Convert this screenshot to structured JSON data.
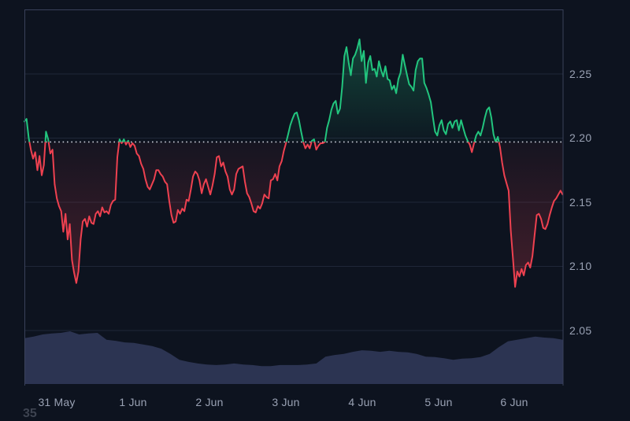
{
  "chart_data": {
    "type": "line",
    "title": "",
    "x_labels": [
      "31 May",
      "1 Jun",
      "2 Jun",
      "3 Jun",
      "4 Jun",
      "5 Jun",
      "6 Jun"
    ],
    "y_tick_labels": [
      "2.25",
      "2.20",
      "2.15",
      "2.10",
      "2.05"
    ],
    "y_ticks": [
      2.25,
      2.2,
      2.15,
      2.1,
      2.05
    ],
    "ylim_visible": [
      2.01,
      2.3
    ],
    "baseline": 2.197,
    "grid": "horizontal-only",
    "legend": "none",
    "corner_text": "35",
    "colors": {
      "up": "#22c57e",
      "down": "#ee4150",
      "volume": "#2c3452",
      "background": "#0d131f",
      "grid": "#1f2738",
      "border": "#39415a",
      "baseline_dots": "#ccd1db",
      "axis_text": "#99a1b3",
      "corner_text": "#3d4350"
    },
    "prices": [
      2.213,
      2.215,
      2.2,
      2.191,
      2.184,
      2.189,
      2.175,
      2.186,
      2.171,
      2.179,
      2.205,
      2.199,
      2.188,
      2.191,
      2.164,
      2.153,
      2.147,
      2.143,
      2.127,
      2.141,
      2.121,
      2.133,
      2.105,
      2.095,
      2.087,
      2.096,
      2.121,
      2.135,
      2.137,
      2.131,
      2.139,
      2.134,
      2.133,
      2.141,
      2.143,
      2.139,
      2.146,
      2.142,
      2.143,
      2.141,
      2.148,
      2.151,
      2.152,
      2.185,
      2.199,
      2.196,
      2.199,
      2.195,
      2.198,
      2.193,
      2.196,
      2.194,
      2.188,
      2.186,
      2.18,
      2.176,
      2.168,
      2.162,
      2.16,
      2.164,
      2.168,
      2.175,
      2.175,
      2.172,
      2.17,
      2.166,
      2.164,
      2.151,
      2.14,
      2.134,
      2.135,
      2.144,
      2.141,
      2.145,
      2.143,
      2.152,
      2.151,
      2.16,
      2.17,
      2.174,
      2.172,
      2.167,
      2.157,
      2.164,
      2.168,
      2.162,
      2.156,
      2.163,
      2.172,
      2.185,
      2.186,
      2.178,
      2.181,
      2.174,
      2.17,
      2.16,
      2.156,
      2.16,
      2.172,
      2.176,
      2.177,
      2.178,
      2.166,
      2.157,
      2.154,
      2.149,
      2.143,
      2.142,
      2.147,
      2.145,
      2.149,
      2.156,
      2.154,
      2.153,
      2.167,
      2.168,
      2.172,
      2.167,
      2.178,
      2.182,
      2.19,
      2.196,
      2.203,
      2.21,
      2.215,
      2.219,
      2.22,
      2.214,
      2.205,
      2.197,
      2.192,
      2.195,
      2.192,
      2.198,
      2.199,
      2.191,
      2.194,
      2.196,
      2.196,
      2.197,
      2.208,
      2.214,
      2.222,
      2.227,
      2.229,
      2.219,
      2.223,
      2.24,
      2.264,
      2.271,
      2.259,
      2.249,
      2.262,
      2.265,
      2.27,
      2.277,
      2.26,
      2.268,
      2.243,
      2.259,
      2.264,
      2.253,
      2.254,
      2.248,
      2.26,
      2.253,
      2.248,
      2.256,
      2.246,
      2.245,
      2.238,
      2.241,
      2.235,
      2.246,
      2.251,
      2.265,
      2.257,
      2.249,
      2.242,
      2.24,
      2.237,
      2.253,
      2.26,
      2.262,
      2.262,
      2.243,
      2.239,
      2.234,
      2.228,
      2.216,
      2.205,
      2.202,
      2.21,
      2.214,
      2.206,
      2.203,
      2.211,
      2.213,
      2.208,
      2.213,
      2.214,
      2.206,
      2.214,
      2.208,
      2.202,
      2.198,
      2.195,
      2.189,
      2.196,
      2.202,
      2.205,
      2.202,
      2.208,
      2.216,
      2.222,
      2.224,
      2.216,
      2.203,
      2.197,
      2.201,
      2.193,
      2.181,
      2.171,
      2.165,
      2.159,
      2.128,
      2.106,
      2.084,
      2.096,
      2.092,
      2.098,
      2.093,
      2.101,
      2.103,
      2.099,
      2.108,
      2.124,
      2.14,
      2.141,
      2.137,
      2.13,
      2.129,
      2.133,
      2.14,
      2.146,
      2.151,
      2.153,
      2.156,
      2.159,
      2.156
    ],
    "volume_normalized": [
      0.87,
      0.9,
      0.94,
      0.96,
      0.97,
      1.0,
      0.94,
      0.96,
      0.97,
      0.84,
      0.82,
      0.79,
      0.78,
      0.75,
      0.72,
      0.67,
      0.57,
      0.46,
      0.42,
      0.39,
      0.37,
      0.36,
      0.37,
      0.39,
      0.37,
      0.36,
      0.34,
      0.34,
      0.36,
      0.36,
      0.36,
      0.37,
      0.39,
      0.52,
      0.55,
      0.57,
      0.61,
      0.64,
      0.63,
      0.61,
      0.63,
      0.61,
      0.6,
      0.57,
      0.52,
      0.51,
      0.49,
      0.46,
      0.48,
      0.49,
      0.51,
      0.57,
      0.7,
      0.81,
      0.84,
      0.87,
      0.9,
      0.88,
      0.87,
      0.84
    ]
  }
}
